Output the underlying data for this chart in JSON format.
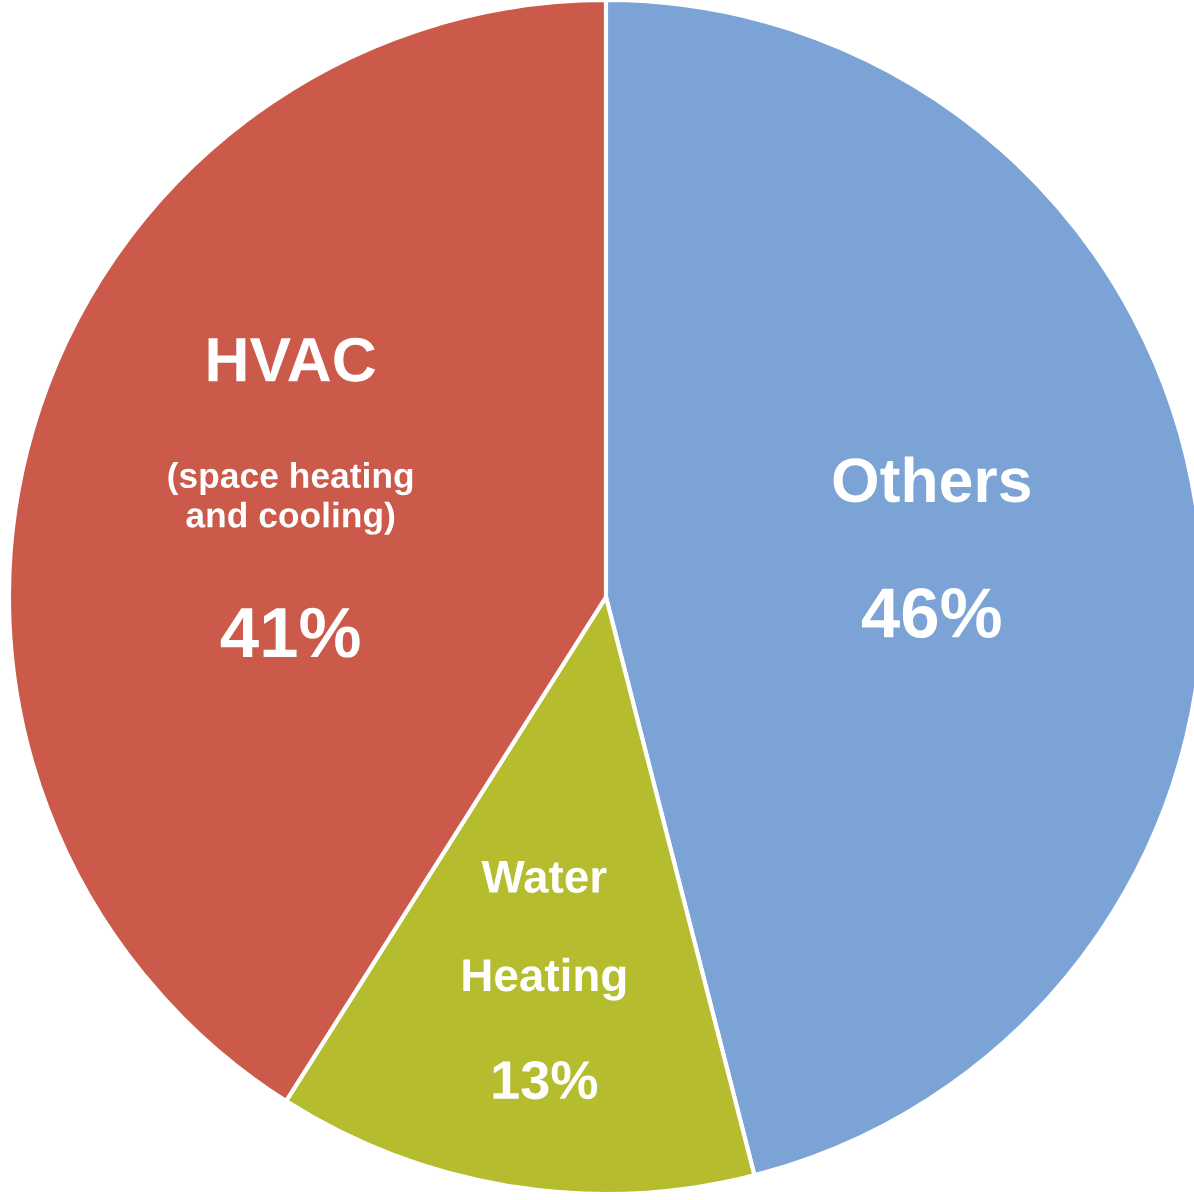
{
  "chart_data": {
    "type": "pie",
    "categories": [
      "Others",
      "Water\nHeating",
      "HVAC\n(space heating\nand cooling)"
    ],
    "values": [
      46,
      13,
      41
    ],
    "value_labels": [
      "46%",
      "13%",
      "41%"
    ],
    "colors": [
      "#7ba3d6",
      "#b5bd2e",
      "#cc5a4a"
    ]
  }
}
